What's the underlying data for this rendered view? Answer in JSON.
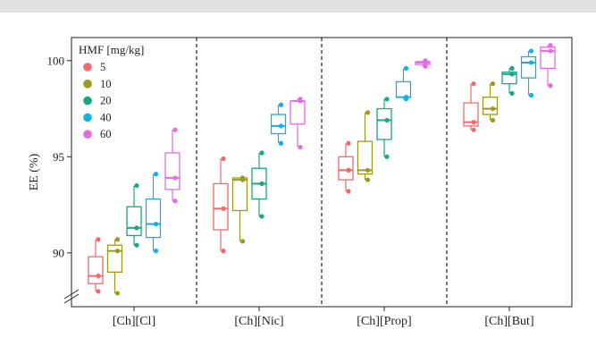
{
  "chart_data": {
    "type": "box",
    "ylabel": "EE (%)",
    "ylim": [
      87.2,
      101.2
    ],
    "yticks": [
      90,
      95,
      100
    ],
    "axis_break": true,
    "categories": [
      "[Ch][Cl]",
      "[Ch][Nic]",
      "[Ch][Prop]",
      "[Ch][But]"
    ],
    "legend": {
      "title": "HMF [mg/kg]",
      "position": "top-left",
      "entries": [
        "5",
        "10",
        "20",
        "40",
        "60"
      ]
    },
    "series": [
      {
        "name": "5",
        "color": "#f0696b",
        "boxes": [
          {
            "min": 88.0,
            "q1": 88.4,
            "median": 88.8,
            "q3": 89.8,
            "max": 90.7,
            "points": [
              88.0,
              88.8,
              90.7
            ]
          },
          {
            "min": 90.1,
            "q1": 91.2,
            "median": 92.3,
            "q3": 93.6,
            "max": 94.9,
            "points": [
              90.1,
              92.3,
              94.9
            ]
          },
          {
            "min": 93.2,
            "q1": 93.8,
            "median": 94.3,
            "q3": 95.0,
            "max": 95.7,
            "points": [
              93.2,
              94.3,
              95.7
            ]
          },
          {
            "min": 96.4,
            "q1": 96.6,
            "median": 96.8,
            "q3": 97.8,
            "max": 98.8,
            "points": [
              96.4,
              96.8,
              98.8
            ]
          }
        ]
      },
      {
        "name": "10",
        "color": "#9a9a1e",
        "boxes": [
          {
            "min": 87.9,
            "q1": 89.0,
            "median": 90.1,
            "q3": 90.4,
            "max": 90.7,
            "points": [
              87.9,
              90.1,
              90.7
            ]
          },
          {
            "min": 90.6,
            "q1": 92.2,
            "median": 93.8,
            "q3": 93.9,
            "max": 93.9,
            "points": [
              90.6,
              93.8,
              93.9
            ]
          },
          {
            "min": 93.8,
            "q1": 94.1,
            "median": 94.3,
            "q3": 95.8,
            "max": 97.3,
            "points": [
              93.8,
              94.3,
              97.3
            ]
          },
          {
            "min": 96.9,
            "q1": 97.2,
            "median": 97.5,
            "q3": 98.1,
            "max": 98.8,
            "points": [
              96.9,
              97.5,
              98.8
            ]
          }
        ]
      },
      {
        "name": "20",
        "color": "#1aa683",
        "boxes": [
          {
            "min": 90.4,
            "q1": 90.9,
            "median": 91.3,
            "q3": 92.4,
            "max": 93.5,
            "points": [
              90.4,
              91.3,
              93.5
            ]
          },
          {
            "min": 91.9,
            "q1": 92.8,
            "median": 93.6,
            "q3": 94.4,
            "max": 95.2,
            "points": [
              91.9,
              93.6,
              95.2
            ]
          },
          {
            "min": 95.0,
            "q1": 95.9,
            "median": 96.9,
            "q3": 97.5,
            "max": 98.0,
            "points": [
              95.0,
              96.9,
              98.0
            ]
          },
          {
            "min": 98.3,
            "q1": 98.8,
            "median": 99.3,
            "q3": 99.4,
            "max": 99.6,
            "points": [
              98.3,
              99.3,
              99.6
            ]
          }
        ]
      },
      {
        "name": "40",
        "color": "#16aee6",
        "boxes": [
          {
            "min": 90.1,
            "q1": 90.8,
            "median": 91.5,
            "q3": 92.8,
            "max": 94.1,
            "points": [
              90.1,
              91.5,
              94.1
            ]
          },
          {
            "min": 95.7,
            "q1": 96.2,
            "median": 96.6,
            "q3": 97.2,
            "max": 97.7,
            "points": [
              95.7,
              96.6,
              97.7
            ]
          },
          {
            "min": 98.0,
            "q1": 98.1,
            "median": 98.1,
            "q3": 98.9,
            "max": 99.6,
            "points": [
              98.0,
              98.1,
              99.6
            ]
          },
          {
            "min": 98.2,
            "q1": 99.1,
            "median": 99.9,
            "q3": 100.2,
            "max": 100.5,
            "points": [
              98.2,
              99.9,
              100.5
            ]
          }
        ]
      },
      {
        "name": "60",
        "color": "#e26ce6",
        "boxes": [
          {
            "min": 92.7,
            "q1": 93.3,
            "median": 93.9,
            "q3": 95.2,
            "max": 96.4,
            "points": [
              92.7,
              93.9,
              96.4
            ]
          },
          {
            "min": 95.5,
            "q1": 96.7,
            "median": 97.9,
            "q3": 97.9,
            "max": 98.0,
            "points": [
              95.5,
              97.9,
              98.0
            ]
          },
          {
            "min": 99.7,
            "q1": 99.8,
            "median": 99.9,
            "q3": 99.95,
            "max": 100.0,
            "points": [
              99.7,
              99.9,
              100.0
            ]
          },
          {
            "min": 98.7,
            "q1": 99.6,
            "median": 100.5,
            "q3": 100.7,
            "max": 100.8,
            "points": [
              98.7,
              100.5,
              100.8
            ]
          }
        ]
      }
    ]
  }
}
